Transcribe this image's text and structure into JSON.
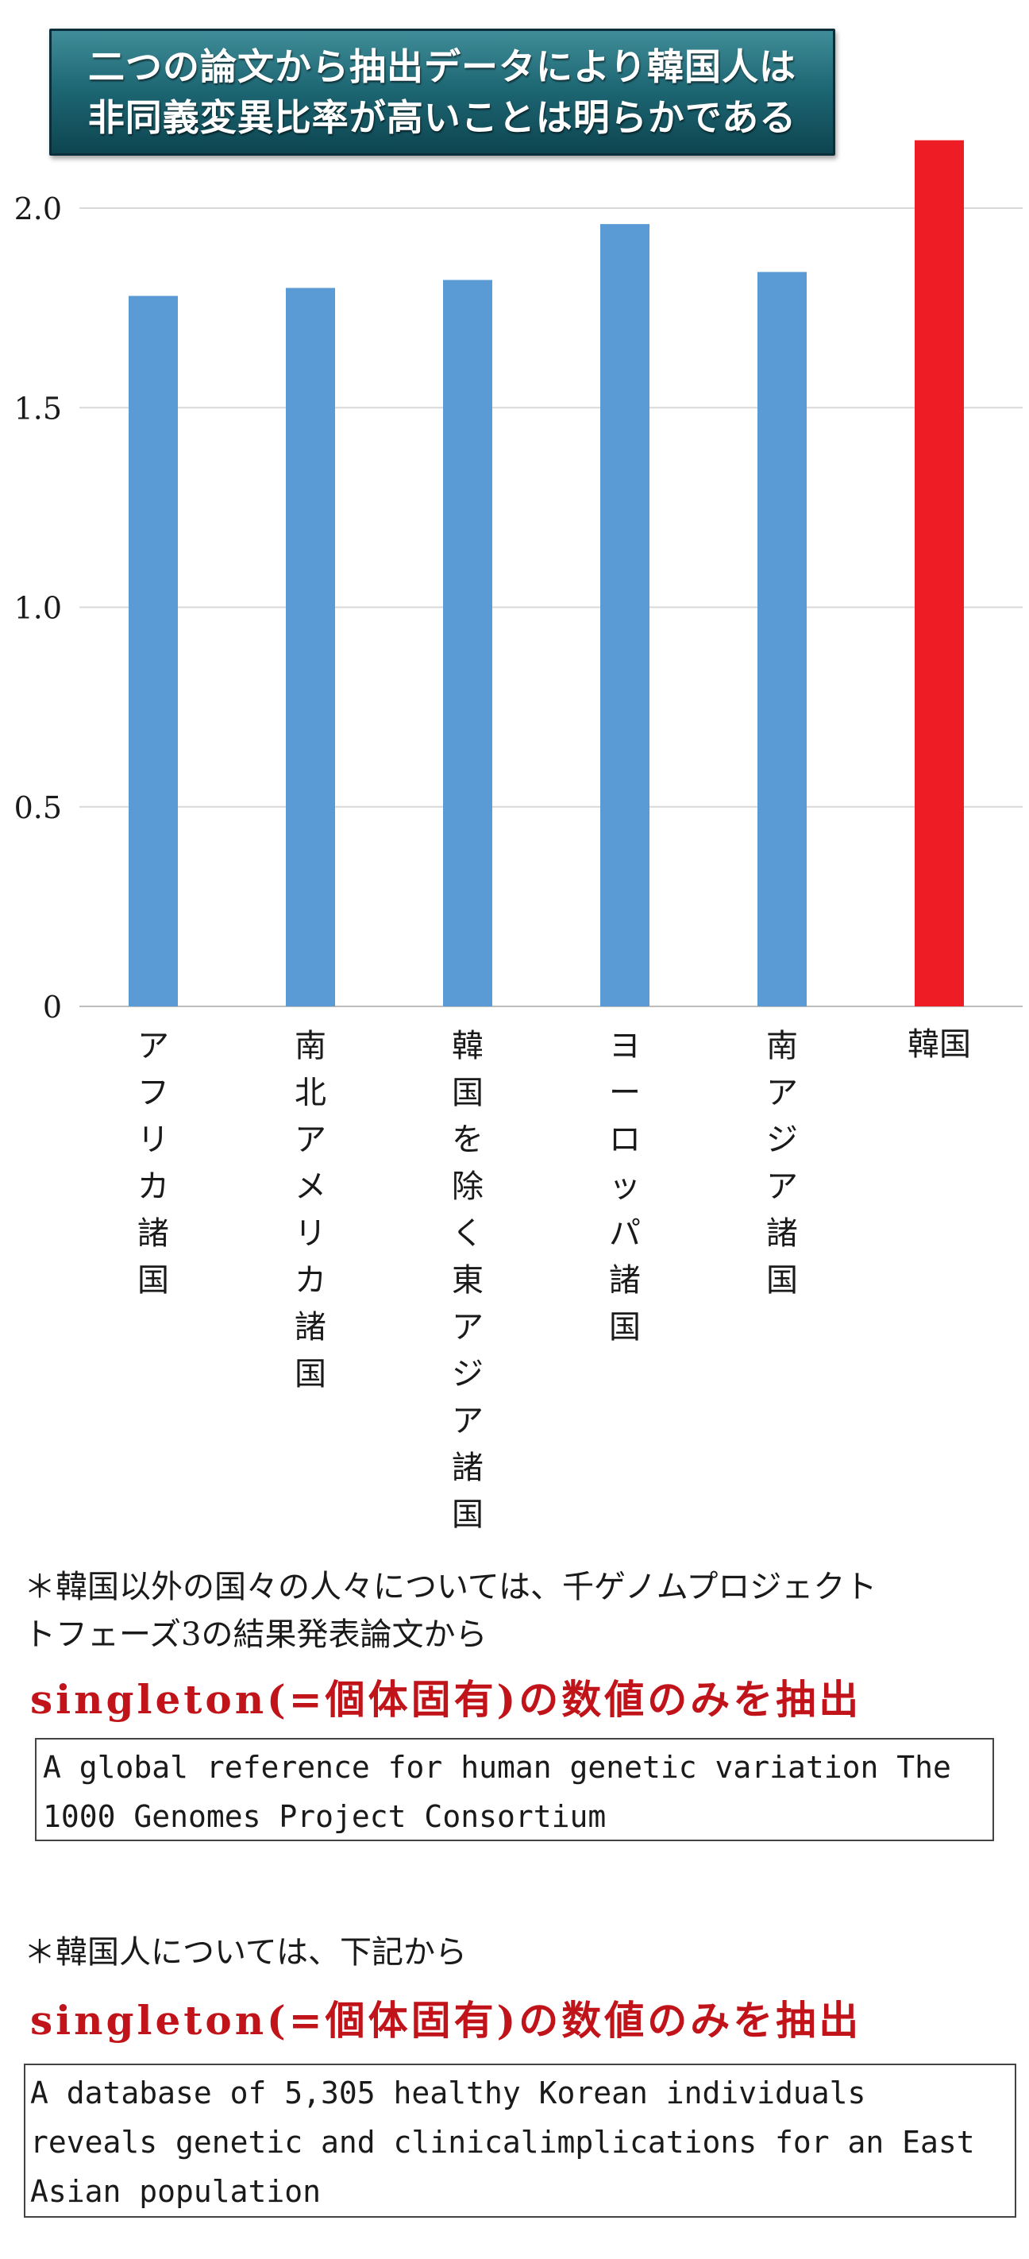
{
  "title": {
    "line1": "二つの論文から抽出データにより韓国人は",
    "line2": "非同義変異比率が高いことは明らかである"
  },
  "chart_data": {
    "type": "bar",
    "categories": [
      "アフリカ諸国",
      "南北アメリカ諸国",
      "韓国を除く東アジア諸国",
      "ヨーロッパ諸国",
      "南アジア諸国",
      "韓国"
    ],
    "values": [
      1.78,
      1.8,
      1.82,
      1.96,
      1.84,
      2.17
    ],
    "colors": [
      "#5b9bd5",
      "#5b9bd5",
      "#5b9bd5",
      "#5b9bd5",
      "#5b9bd5",
      "#ee1c25"
    ],
    "ylim": [
      0,
      2.2
    ],
    "yticks": [
      "0",
      "0.5",
      "1.0",
      "1.5",
      "2.0"
    ],
    "grid": true
  },
  "notes": {
    "note1_line1": "＊韓国以外の国々の人々については、千ゲノムプロジェクト",
    "note1_line2": "トフェーズ3の結果発表論文から",
    "highlight1": "singleton(=個体固有)の数値のみを抽出",
    "ref1_line1": "A global reference for human genetic variation The",
    "ref1_line2": "1000 Genomes Project Consortium",
    "note2": "＊韓国人については、下記から",
    "highlight2": "singleton(=個体固有)の数値のみを抽出",
    "ref2_line1": "A database of 5,305 healthy Korean individuals",
    "ref2_line2": "reveals genetic and clinicalimplications for an East",
    "ref2_line3": "Asian population"
  }
}
